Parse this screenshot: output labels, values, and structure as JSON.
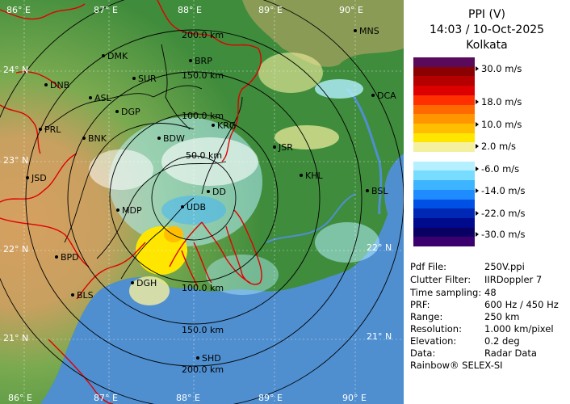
{
  "panel": {
    "product": "PPI (V)",
    "timestamp": "14:03 / 10-Oct-2025",
    "station": "Kolkata"
  },
  "colorbar": {
    "colors": [
      "#5a0a5a",
      "#8b0000",
      "#b40000",
      "#dc0000",
      "#ff3000",
      "#ff6a00",
      "#ff9600",
      "#ffbe00",
      "#ffe600",
      "#f5f0a0",
      "#ffffff",
      "#b4f0ff",
      "#78dcff",
      "#3cb4ff",
      "#1e8cff",
      "#0050e6",
      "#0028b4",
      "#000a8c",
      "#0a0064",
      "#3c006e"
    ],
    "labels": [
      "30.0 m/s",
      "18.0 m/s",
      "10.0 m/s",
      "2.0 m/s",
      "-6.0 m/s",
      "-14.0 m/s",
      "-22.0 m/s",
      "-30.0 m/s"
    ]
  },
  "info": [
    {
      "key": "Pdf File:",
      "value": "250V.ppi"
    },
    {
      "key": "Clutter Filter:",
      "value": "IIRDoppler 7"
    },
    {
      "key": "Time sampling:",
      "value": "48"
    },
    {
      "key": "PRF:",
      "value": "600 Hz / 450 Hz"
    },
    {
      "key": "Range:",
      "value": "250 km"
    },
    {
      "key": "Resolution:",
      "value": "1.000 km/pixel"
    },
    {
      "key": "Elevation:",
      "value": "0.2 deg"
    },
    {
      "key": "Data:",
      "value": "Radar Data"
    }
  ],
  "footer": "Rainbow® SELEX-SI",
  "map": {
    "colors": {
      "sea": "#4f8fd0",
      "land_low": "#3c8c3c",
      "land_mid": "#6aa94a",
      "land_high": "#c8963c",
      "border_red": "#e00000",
      "district_black": "#000000"
    },
    "grid_labels_top": [
      "86° E",
      "87° E",
      "88° E",
      "89° E",
      "90° E"
    ],
    "grid_labels_bottom": [
      "86° E",
      "87° E",
      "88° E",
      "89° E",
      "90° E"
    ],
    "grid_labels_left": [
      "24° N",
      "23° N",
      "22° N",
      "21° N"
    ],
    "grid_labels_right": [
      "22° N",
      "21° N"
    ],
    "range_rings_top": [
      "200.0 km",
      "150.0 km",
      "100.0 km",
      "50.0 km"
    ],
    "range_rings_bottom": [
      "100.0 km",
      "150.0 km",
      "200.0 km"
    ],
    "places": [
      {
        "name": "MNS"
      },
      {
        "name": "DMK"
      },
      {
        "name": "BRP"
      },
      {
        "name": "DNB"
      },
      {
        "name": "SUR"
      },
      {
        "name": "ASL"
      },
      {
        "name": "DGP"
      },
      {
        "name": "DCA"
      },
      {
        "name": "KRG"
      },
      {
        "name": "PRL"
      },
      {
        "name": "BNK"
      },
      {
        "name": "BDW"
      },
      {
        "name": "JSR"
      },
      {
        "name": "KHL"
      },
      {
        "name": "JSD"
      },
      {
        "name": "DD"
      },
      {
        "name": "BSL"
      },
      {
        "name": "MDP"
      },
      {
        "name": "UDB"
      },
      {
        "name": "BPD"
      },
      {
        "name": "DGH"
      },
      {
        "name": "BLS"
      },
      {
        "name": "SHD"
      }
    ]
  }
}
